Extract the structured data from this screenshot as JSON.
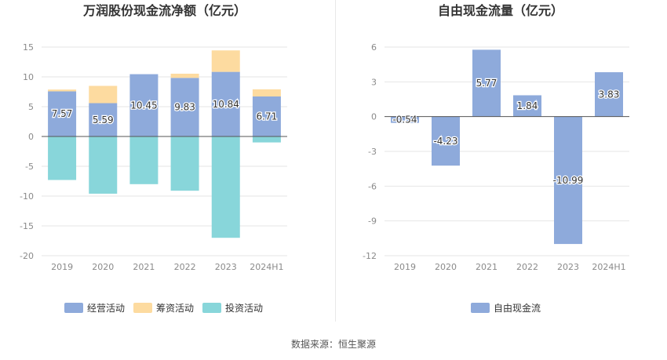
{
  "colors": {
    "operating": "#8eaadb",
    "financing": "#fddba0",
    "investing": "#88d6da",
    "fcf": "#8eaadb"
  },
  "source": "数据来源：恒生聚源",
  "chart_data": [
    {
      "type": "bar",
      "stacked": true,
      "title": "万润股份现金流净额（亿元）",
      "categories": [
        "2019",
        "2020",
        "2021",
        "2022",
        "2023",
        "2024H1"
      ],
      "ylim": [
        -20,
        15
      ],
      "yticks": [
        15,
        10,
        5,
        0,
        -5,
        -10,
        -15,
        -20
      ],
      "grid": true,
      "legend_position": "bottom",
      "series": [
        {
          "name": "经营活动",
          "color_key": "operating",
          "values": [
            7.57,
            5.59,
            10.45,
            9.83,
            10.84,
            6.71
          ],
          "labels": [
            "7.57",
            "5.59",
            "10.45",
            "9.83",
            "10.84",
            "6.71"
          ]
        },
        {
          "name": "筹资活动",
          "color_key": "financing",
          "values": [
            0.3,
            2.9,
            0.0,
            0.7,
            3.6,
            1.2
          ]
        },
        {
          "name": "投资活动",
          "color_key": "investing",
          "values": [
            -7.3,
            -9.6,
            -8.0,
            -9.1,
            -17.0,
            -1.0
          ]
        }
      ]
    },
    {
      "type": "bar",
      "title": "自由现金流量（亿元）",
      "categories": [
        "2019",
        "2020",
        "2021",
        "2022",
        "2023",
        "2024H1"
      ],
      "ylim": [
        -12,
        6
      ],
      "yticks": [
        6,
        3,
        0,
        -3,
        -6,
        -9,
        -12
      ],
      "grid": true,
      "legend_position": "bottom",
      "series": [
        {
          "name": "自由现金流",
          "color_key": "fcf",
          "values": [
            -0.54,
            -4.23,
            5.77,
            1.84,
            -10.99,
            3.83
          ],
          "labels": [
            "-0.54",
            "-4.23",
            "5.77",
            "1.84",
            "-10.99",
            "3.83"
          ]
        }
      ]
    }
  ]
}
